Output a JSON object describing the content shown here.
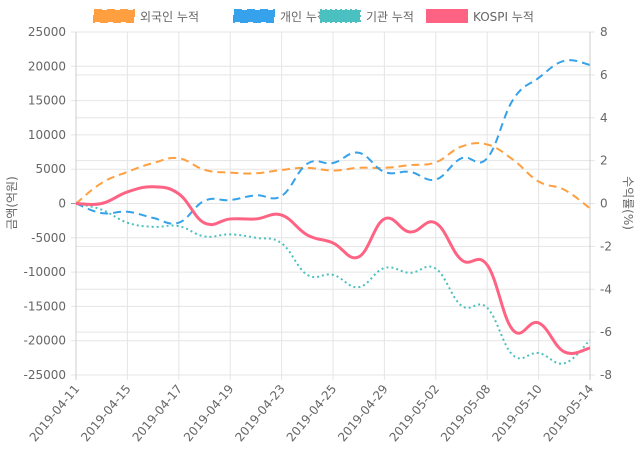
{
  "chart_data": {
    "type": "line",
    "legend_position": "top",
    "grid": true,
    "x": [
      "2019-04-11",
      "2019-04-12",
      "2019-04-15",
      "2019-04-16",
      "2019-04-17",
      "2019-04-18",
      "2019-04-19",
      "2019-04-22",
      "2019-04-23",
      "2019-04-24",
      "2019-04-25",
      "2019-04-26",
      "2019-04-29",
      "2019-04-30",
      "2019-05-02",
      "2019-05-03",
      "2019-05-08",
      "2019-05-09",
      "2019-05-10",
      "2019-05-13",
      "2019-05-14"
    ],
    "x_tick_labels": [
      "2019-04-11",
      "2019-04-15",
      "2019-04-17",
      "2019-04-19",
      "2019-04-23",
      "2019-04-25",
      "2019-04-29",
      "2019-05-02",
      "2019-05-08",
      "2019-05-10",
      "2019-05-14"
    ],
    "y_left": {
      "label": "금액(억원)",
      "range": [
        -25000,
        25000
      ],
      "ticks": [
        "25000",
        "20000",
        "15000",
        "10000",
        "5000",
        "0",
        "-5000",
        "-10000",
        "-15000",
        "-20000",
        "-25000"
      ]
    },
    "y_right": {
      "label": "수익률(%)",
      "range": [
        -8,
        8
      ],
      "ticks": [
        "8",
        "6",
        "4",
        "2",
        "0",
        "-2",
        "-4",
        "-6",
        "-8"
      ]
    },
    "series": [
      {
        "name": "외국인 누적",
        "axis": "left",
        "color": "#ff9f40",
        "dash": "dashed",
        "values": [
          0,
          3000,
          4600,
          5900,
          6600,
          4900,
          4500,
          4400,
          4900,
          5200,
          4800,
          5200,
          5200,
          5600,
          6000,
          8300,
          8600,
          6400,
          3200,
          2000,
          -700
        ]
      },
      {
        "name": "개인 누적",
        "axis": "left",
        "color": "#36a2eb",
        "dash": "dashed",
        "values": [
          0,
          -1400,
          -1200,
          -2100,
          -2800,
          400,
          500,
          1200,
          1100,
          5800,
          5900,
          7400,
          4600,
          4600,
          3500,
          6600,
          6600,
          15100,
          18300,
          20800,
          20200
        ]
      },
      {
        "name": "기관 누적",
        "axis": "left",
        "color": "#4bc0c0",
        "dash": "dotted",
        "values": [
          0,
          -900,
          -2800,
          -3400,
          -3300,
          -4800,
          -4500,
          -5000,
          -5800,
          -10400,
          -10400,
          -12200,
          -9400,
          -10100,
          -9500,
          -14900,
          -15200,
          -22100,
          -21800,
          -23300,
          -19900
        ]
      },
      {
        "name": "KOSPI 누적",
        "axis": "right",
        "color": "#ff6384",
        "dash": "solid",
        "values": [
          0,
          0,
          0.54,
          0.78,
          0.45,
          -0.91,
          -0.72,
          -0.72,
          -0.54,
          -1.47,
          -1.84,
          -2.49,
          -0.72,
          -1.33,
          -0.91,
          -2.63,
          -2.87,
          -5.9,
          -5.57,
          -6.92,
          -6.74
        ]
      }
    ]
  }
}
